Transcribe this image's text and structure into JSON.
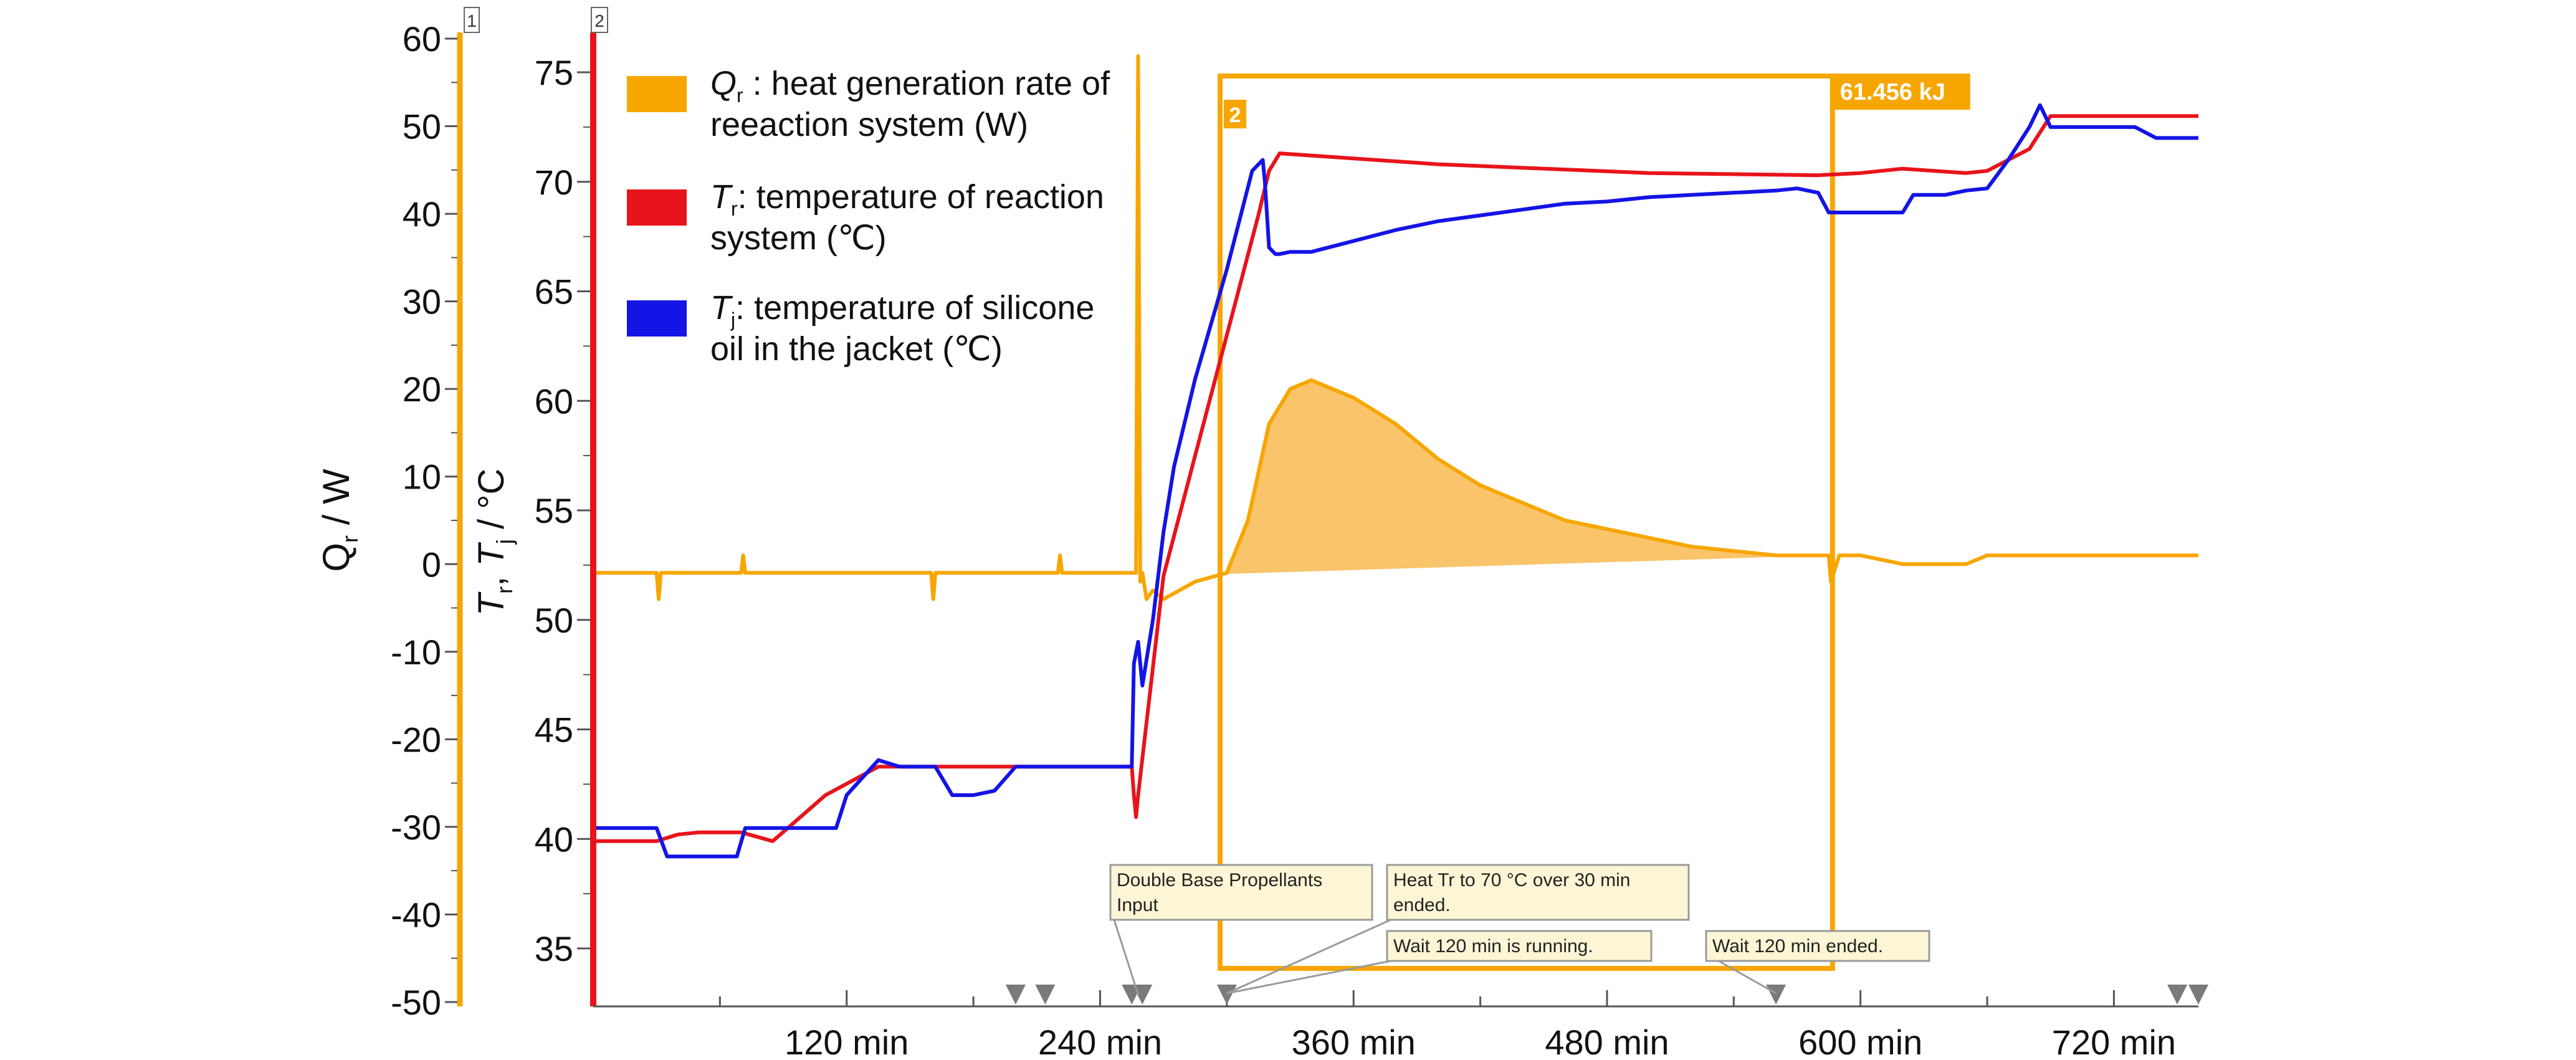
{
  "colors": {
    "qr": "#f7a600",
    "qr_fill": "#f9c46a",
    "tr": "#e8141b",
    "tj": "#1414e6",
    "axis": "#555555",
    "callout_bg": "#fdf6d6",
    "callout_border": "#9a9a9a",
    "marker": "#7a7a7a"
  },
  "chart_data": {
    "type": "line",
    "x_unit": "min",
    "xlim": [
      0,
      760
    ],
    "x_ticks": [
      120,
      240,
      360,
      480,
      600,
      720
    ],
    "x_tick_labels": [
      "120 min",
      "240 min",
      "360 min",
      "480 min",
      "600 min",
      "720 min"
    ],
    "axes": [
      {
        "id": "1",
        "label_main": "Q",
        "label_sub": "r",
        "label_rest": " / W",
        "ylim": [
          -50,
          60
        ],
        "ticks": [
          60,
          50,
          40,
          30,
          20,
          10,
          0,
          -10,
          -20,
          -30,
          -40,
          -50
        ],
        "tick_labels": [
          "60",
          "50",
          "40",
          "30",
          "20",
          "10",
          "0",
          "-10",
          "-20",
          "-30",
          "-40",
          "-50"
        ]
      },
      {
        "id": "2",
        "label_main": "T",
        "label_sub": "r",
        "label_mid": ", T",
        "label_sub2": "j",
        "label_rest": " / °C",
        "ylim": [
          32.2,
          76.5
        ],
        "ticks": [
          75,
          70,
          65,
          60,
          55,
          50,
          45,
          40,
          35
        ],
        "tick_labels": [
          "75",
          "70",
          "65",
          "60",
          "55",
          "50",
          "45",
          "40",
          "35"
        ]
      }
    ],
    "series": [
      {
        "key": "qr",
        "axis": "1",
        "legend_main": "Q",
        "legend_sub": "r",
        "legend_line1": " : heat generation rate of",
        "legend_line2": "reeaction system (W)",
        "x": [
          0,
          30,
          31,
          32,
          60,
          70,
          71,
          72,
          100,
          140,
          160,
          161,
          162,
          200,
          220,
          221,
          222,
          250,
          255,
          257,
          258,
          259,
          260,
          262,
          265,
          270,
          285,
          300,
          310,
          320,
          330,
          340,
          350,
          360,
          380,
          400,
          420,
          440,
          460,
          480,
          500,
          520,
          540,
          560,
          580,
          585,
          586,
          590,
          600,
          620,
          640,
          650,
          660,
          680,
          700,
          720,
          740,
          760
        ],
        "y": [
          -1,
          -1,
          -4,
          -1,
          -1,
          -1,
          1,
          -1,
          -1,
          -1,
          -1,
          -4,
          -1,
          -1,
          -1,
          1,
          -1,
          -1,
          -1,
          -1,
          58,
          -2,
          -1,
          -4,
          -3,
          -4,
          -2,
          -1,
          5,
          16,
          20,
          21,
          20,
          19,
          16,
          12,
          9,
          7,
          5,
          4,
          3,
          2,
          1.5,
          1,
          1,
          1,
          -2,
          1,
          1,
          0,
          0,
          0,
          1,
          1,
          1,
          1,
          1,
          1
        ]
      },
      {
        "key": "tr",
        "axis": "2",
        "legend_main": "T",
        "legend_sub": "r",
        "legend_line1": ": temperature of reaction",
        "legend_line2": "system (℃)",
        "x": [
          0,
          30,
          40,
          50,
          70,
          85,
          110,
          135,
          230,
          240,
          255,
          256,
          257,
          258,
          270,
          300,
          315,
          320,
          325,
          400,
          500,
          580,
          600,
          610,
          620,
          650,
          660,
          680,
          690,
          700,
          720,
          740,
          760
        ],
        "y": [
          39.9,
          39.9,
          40.2,
          40.3,
          40.3,
          39.9,
          42.0,
          43.3,
          43.3,
          43.3,
          43.3,
          42.0,
          41.0,
          42.0,
          52.0,
          63.0,
          68.5,
          70.5,
          71.3,
          70.8,
          70.4,
          70.3,
          70.4,
          70.5,
          70.6,
          70.4,
          70.5,
          71.5,
          73.0,
          73.0,
          73.0,
          73.0,
          73.0
        ]
      },
      {
        "key": "tj",
        "axis": "2",
        "legend_main": "T",
        "legend_sub": "j",
        "legend_line1": ": temperature of silicone",
        "legend_line2": "oil in the jacket (℃)",
        "x": [
          0,
          20,
          30,
          35,
          45,
          55,
          68,
          72,
          90,
          115,
          120,
          135,
          145,
          160,
          162,
          170,
          180,
          190,
          200,
          210,
          225,
          255,
          256,
          258,
          260,
          265,
          270,
          275,
          285,
          300,
          312,
          317,
          318,
          320,
          323,
          325,
          330,
          340,
          360,
          380,
          400,
          430,
          460,
          480,
          500,
          520,
          540,
          560,
          570,
          580,
          585,
          590,
          595,
          620,
          625,
          640,
          650,
          660,
          670,
          680,
          685,
          690,
          700,
          710,
          720,
          730,
          740,
          750,
          760
        ],
        "y": [
          40.5,
          40.5,
          40.5,
          39.2,
          39.2,
          39.2,
          39.2,
          40.5,
          40.5,
          40.5,
          42.0,
          43.6,
          43.3,
          43.3,
          43.3,
          42.0,
          42.0,
          42.2,
          43.3,
          43.3,
          43.3,
          43.3,
          48.0,
          49.0,
          47.0,
          50.0,
          54.0,
          57.0,
          61.0,
          66.0,
          70.5,
          71.0,
          70.0,
          67.0,
          66.7,
          66.7,
          66.8,
          66.8,
          67.3,
          67.8,
          68.2,
          68.6,
          69.0,
          69.1,
          69.3,
          69.4,
          69.5,
          69.6,
          69.7,
          69.5,
          68.6,
          68.6,
          68.6,
          68.6,
          69.4,
          69.4,
          69.6,
          69.7,
          71.0,
          72.5,
          73.5,
          72.5,
          72.5,
          72.5,
          72.5,
          72.5,
          72.0,
          72.0,
          72.0
        ]
      }
    ],
    "integration": {
      "box_label": "2",
      "value_label": "61.456 kJ",
      "x_start": 298,
      "x_end": 585
    },
    "markers": {
      "x": [
        200,
        214,
        255,
        260,
        300,
        560,
        750,
        760
      ]
    },
    "annotations": [
      {
        "lines": [
          "Double Base Propellants",
          "Input"
        ]
      },
      {
        "lines": [
          "Heat Tr to 70 °C over 30 min",
          "ended."
        ]
      },
      {
        "lines": [
          "Wait 120 min is running."
        ]
      },
      {
        "lines": [
          "Wait 120 min ended."
        ]
      }
    ]
  }
}
